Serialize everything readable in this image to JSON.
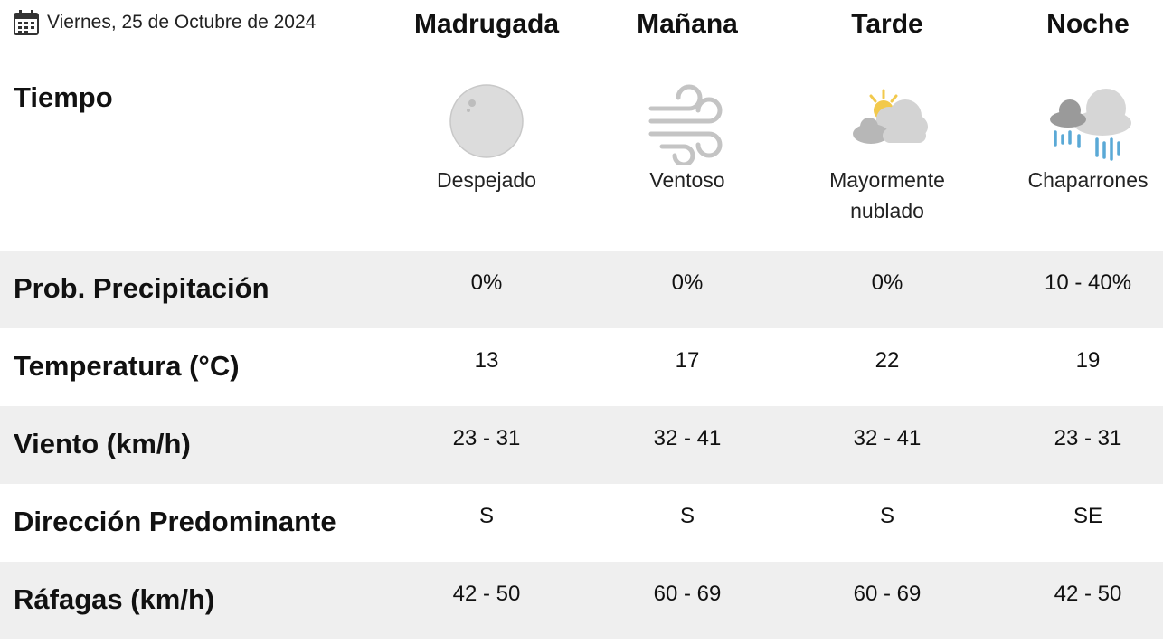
{
  "header": {
    "date": "Viernes, 25 de Octubre de 2024",
    "periods": [
      "Madrugada",
      "Mañana",
      "Tarde",
      "Noche"
    ]
  },
  "weather": {
    "label": "Tiempo",
    "items": [
      {
        "icon": "clear-night-icon",
        "desc_line1": "Despejado",
        "desc_line2": ""
      },
      {
        "icon": "wind-icon",
        "desc_line1": "Ventoso",
        "desc_line2": ""
      },
      {
        "icon": "partly-cloudy-icon",
        "desc_line1": "Mayormente",
        "desc_line2": "nublado"
      },
      {
        "icon": "rain-showers-icon",
        "desc_line1": "Chaparrones",
        "desc_line2": ""
      }
    ]
  },
  "rows": [
    {
      "label": "Prob. Precipitación",
      "values": [
        "0%",
        "0%",
        "0%",
        "10 - 40%"
      ]
    },
    {
      "label": "Temperatura (°C)",
      "values": [
        "13",
        "17",
        "22",
        "19"
      ]
    },
    {
      "label": "Viento (km/h)",
      "values": [
        "23 - 31",
        "32 - 41",
        "32 - 41",
        "23 - 31"
      ]
    },
    {
      "label": "Dirección Predominante",
      "values": [
        "S",
        "S",
        "S",
        "SE"
      ]
    },
    {
      "label": "Ráfagas (km/h)",
      "values": [
        "42 - 50",
        "60 - 69",
        "60 - 69",
        "42 - 50"
      ]
    }
  ],
  "colors": {
    "shaded_row": "#efefef",
    "moon": "#dcdcdc",
    "cloud": "#cfcfcf",
    "sun": "#f2c94c",
    "rain": "#5aa9d6"
  }
}
